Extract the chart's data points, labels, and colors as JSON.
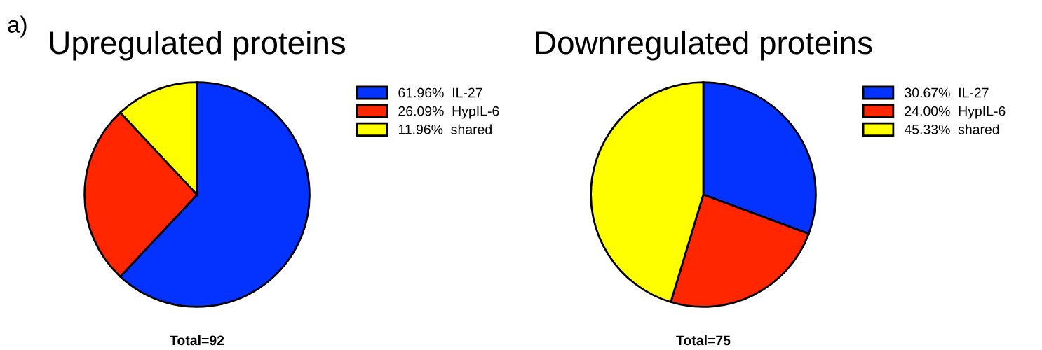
{
  "chart_data": [
    {
      "type": "pie",
      "title": "Upregulated proteins",
      "categories": [
        "IL-27",
        "HypIL-6",
        "shared"
      ],
      "values": [
        61.96,
        26.09,
        11.96
      ],
      "value_labels": [
        "61.96%",
        "26.09%",
        "11.96%"
      ],
      "colors": [
        "#0433ff",
        "#ff2600",
        "#ffff00"
      ],
      "legend": "right",
      "annotations": [
        "a)",
        "Total=92"
      ]
    },
    {
      "type": "pie",
      "title": "Downregulated proteins",
      "categories": [
        "IL-27",
        "HypIL-6",
        "shared"
      ],
      "values": [
        30.67,
        24.0,
        45.33
      ],
      "value_labels": [
        "30.67%",
        "24.00%",
        "45.33%"
      ],
      "colors": [
        "#0433ff",
        "#ff2600",
        "#ffff00"
      ],
      "legend": "right",
      "annotations": [
        "Total=75"
      ]
    }
  ]
}
